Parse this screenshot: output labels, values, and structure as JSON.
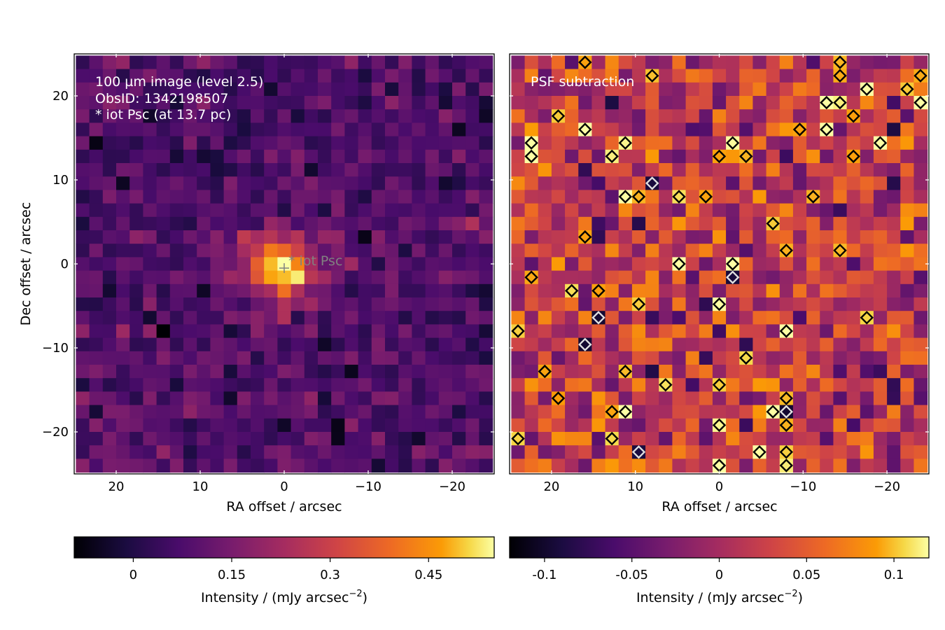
{
  "chart_data": [
    {
      "type": "heatmap",
      "panel": "left",
      "annotation_lines": [
        "100 µm image (level 2.5)",
        "ObsID: 1342198507",
        "* iot Psc (at 13.7 pc)"
      ],
      "xlabel": "RA offset / arcsec",
      "ylabel": "Dec offset / arcsec",
      "xlim": [
        25,
        -25
      ],
      "ylim": [
        -25,
        25
      ],
      "xticks": [
        20,
        10,
        0,
        -10,
        -20
      ],
      "xtick_labels": [
        "20",
        "10",
        "0",
        "−10",
        "−20"
      ],
      "yticks": [
        20,
        10,
        0,
        -10,
        -20
      ],
      "ytick_labels": [
        "20",
        "10",
        "0",
        "−10",
        "−20"
      ],
      "grid": false,
      "colormap": "inferno",
      "pixel_size_arcsec": 1.6,
      "grid_cells": [
        31,
        31
      ],
      "source": {
        "label": "* iot Psc",
        "x": 0,
        "y": -0.5,
        "peak": 0.55,
        "peak_x": 0.5,
        "peak_y": -0.5,
        "fwhm_arcsec": 6.5
      },
      "background_level": 0.08,
      "noise_level": 0.05,
      "colorbar": {
        "label_text": "Intensity / (mJy arcsec",
        "label_exp": "−2",
        "label_tail": ")",
        "range": [
          -0.09,
          0.55
        ],
        "ticks": [
          0,
          0.15,
          0.3,
          0.45
        ],
        "tick_labels": [
          "0",
          "0.15",
          "0.3",
          "0.45"
        ]
      }
    },
    {
      "type": "heatmap",
      "panel": "right",
      "annotation_lines": [
        "PSF subtraction"
      ],
      "xlabel": "RA offset / arcsec",
      "xlim": [
        25,
        -25
      ],
      "ylim": [
        -25,
        25
      ],
      "xticks": [
        20,
        10,
        0,
        -10,
        -20
      ],
      "xtick_labels": [
        "20",
        "10",
        "0",
        "−10",
        "−20"
      ],
      "grid": false,
      "colormap": "inferno",
      "noise_level": 0.045,
      "contours": {
        "levels": [
          -0.09,
          0.09
        ],
        "colors": [
          "#e0e0e0",
          "#000000"
        ]
      },
      "colorbar": {
        "label_text": "Intensity / (mJy arcsec",
        "label_exp": "−2",
        "label_tail": ")",
        "range": [
          -0.12,
          0.12
        ],
        "ticks": [
          -0.1,
          -0.05,
          0,
          0.05,
          0.1
        ],
        "tick_labels": [
          "-0.1",
          "-0.05",
          "0",
          "0.05",
          "0.1"
        ]
      }
    }
  ]
}
